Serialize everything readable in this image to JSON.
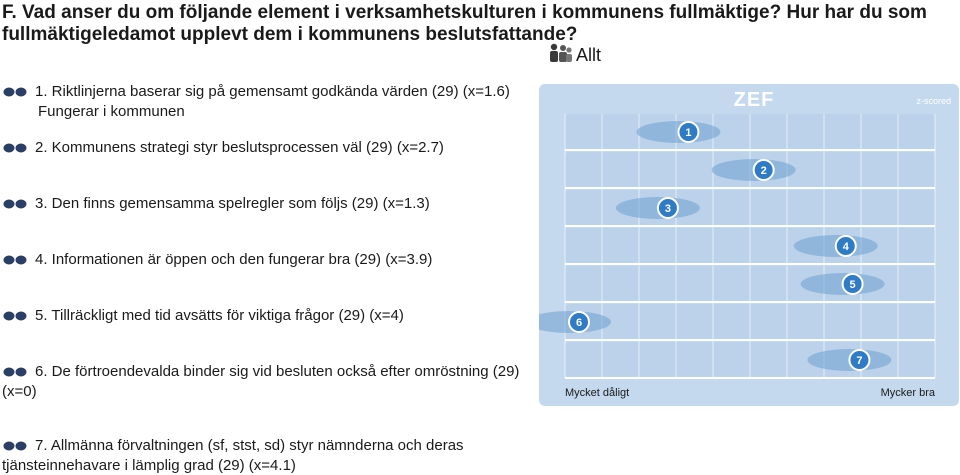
{
  "header": {
    "title": "F. Vad anser du om följande element i verksamhetskulturen i kommunens fullmäktige? Hur har du som fullmäktigeledamot upplevt dem i kommunens beslutsfattande?",
    "filter_label": "Allt",
    "filter_icon": "people-icon"
  },
  "questions": [
    {
      "text": "1. Riktlinjerna baserar sig på gemensamt godkända värden (29) (x=1.6)",
      "sub": "Fungerar i kommunen"
    },
    {
      "text": "2. Kommunens strategi styr beslutsprocessen väl (29) (x=2.7)"
    },
    {
      "text": "3. Den finns gemensamma spelregler som följs (29) (x=1.3)"
    },
    {
      "text": "4. Informationen är öppen och den fungerar bra (29) (x=3.9)"
    },
    {
      "text": "5. Tillräckligt med tid avsätts för viktiga frågor (29) (x=4)"
    },
    {
      "text": "6. De förtroendevalda binder sig vid besluten också efter omröstning (29) (x=0)"
    },
    {
      "text": "7. Allmänna förvaltningen (sf, stst, sd) styr nämnderna och deras tjänsteinnehavare i lämplig grad (29) (x=4.1)"
    }
  ],
  "chart_data": {
    "type": "scatter",
    "brand": "ZEF",
    "scale_label": "z-scored",
    "xlabel_left": "Mycket dåligt",
    "xlabel_right": "Mycker bra",
    "points": [
      {
        "label": "1",
        "value": 1.6
      },
      {
        "label": "2",
        "value": 2.7
      },
      {
        "label": "3",
        "value": 1.3
      },
      {
        "label": "4",
        "value": 3.9
      },
      {
        "label": "5",
        "value": 4.0
      },
      {
        "label": "6",
        "value": 0
      },
      {
        "label": "7",
        "value": 4.1
      }
    ],
    "xlim": [
      0,
      5
    ],
    "colors": {
      "panel": "#c4d8ee",
      "band": "#b4cde8",
      "line": "#ffffff",
      "blob": "#6f9fd0",
      "marker": "#2f7bc6",
      "marker_text": "#ffffff"
    }
  }
}
